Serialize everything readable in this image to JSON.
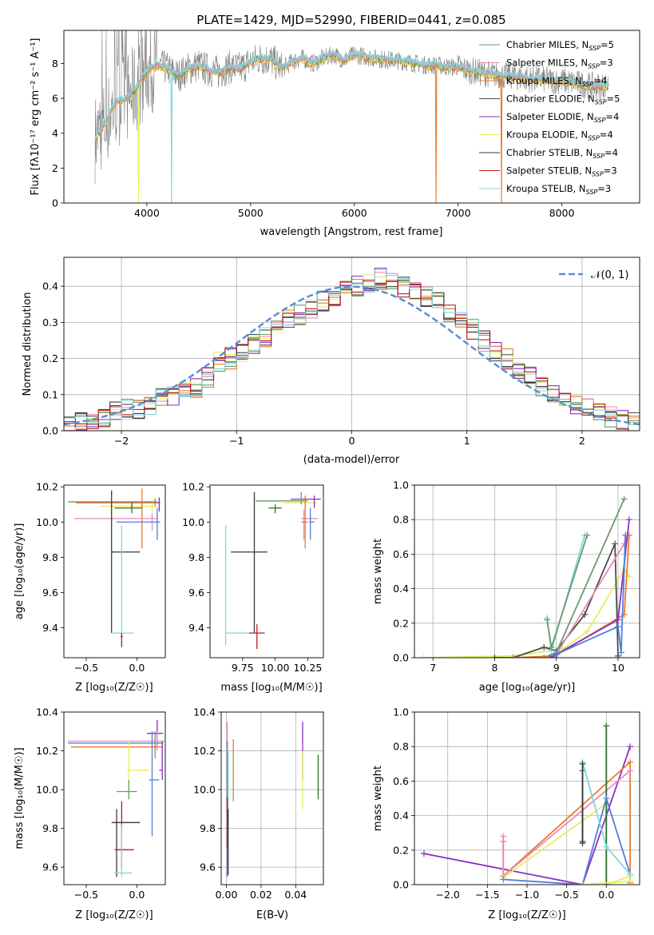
{
  "title": "PLATE=1429, MJD=52990, FIBERID=0441, z=0.085",
  "colors": {
    "chabrier_miles": "#6b9a6b",
    "salpeter_miles": "#e88ab8",
    "kroupa_miles": "#e57c2c",
    "chabrier_elodie": "#4d4d4d",
    "salpeter_elodie": "#8e2cc2",
    "kroupa_elodie": "#e5ef5a",
    "chabrier_stelib": "#3a3a3a",
    "salpeter_stelib": "#c01a1a",
    "kroupa_stelib": "#7fd8d8",
    "series_blue": "#4f7fd9",
    "series_green": "#2e6e2e",
    "gaussian": "#5a8fd6",
    "grid": "#b0b0b0",
    "spectrum_grey": "#808080"
  },
  "legend_spectrum": [
    {
      "pre": "Chabrier MILES, N",
      "sub": "SSP",
      "post": "=5",
      "color": "#6b9a6b"
    },
    {
      "pre": "Salpeter MILES, N",
      "sub": "SSP",
      "post": "=3",
      "color": "#e88ab8"
    },
    {
      "pre": "Kroupa MILES, N",
      "sub": "SSP",
      "post": "=4",
      "color": "#e57c2c"
    },
    {
      "pre": "Chabrier ELODIE, N",
      "sub": "SSP",
      "post": "=5",
      "color": "#4d4d4d"
    },
    {
      "pre": "Salpeter ELODIE, N",
      "sub": "SSP",
      "post": "=4",
      "color": "#8e2cc2"
    },
    {
      "pre": "Kroupa ELODIE, N",
      "sub": "SSP",
      "post": "=4",
      "color": "#e5ef5a"
    },
    {
      "pre": "Chabrier STELIB, N",
      "sub": "SSP",
      "post": "=4",
      "color": "#3a3a3a"
    },
    {
      "pre": "Salpeter STELIB, N",
      "sub": "SSP",
      "post": "=3",
      "color": "#c01a1a"
    },
    {
      "pre": "Kroupa STELIB, N",
      "sub": "SSP",
      "post": "=3",
      "color": "#7fd8d8"
    }
  ],
  "chart_data": [
    {
      "type": "line",
      "xlabel": "wavelength [Angstrom, rest frame]",
      "ylabel": "Flux [f_λ 10^-17 erg cm^-2 s^-1 A^-1]",
      "xlim": [
        3200,
        8750
      ],
      "ylim": [
        0,
        9.9
      ],
      "xticks": [
        "4000",
        "5000",
        "6000",
        "7000",
        "8000"
      ],
      "yticks": [
        "0",
        "2",
        "4",
        "6",
        "8"
      ],
      "continuum": [
        [
          3500,
          3.7
        ],
        [
          3600,
          4.6
        ],
        [
          3700,
          5.8
        ],
        [
          3800,
          6.0
        ],
        [
          3900,
          6.6
        ],
        [
          4000,
          7.6
        ],
        [
          4100,
          7.9
        ],
        [
          4200,
          7.7
        ],
        [
          4300,
          7.3
        ],
        [
          4400,
          7.7
        ],
        [
          4500,
          7.9
        ],
        [
          4600,
          7.6
        ],
        [
          4700,
          7.5
        ],
        [
          4800,
          7.8
        ],
        [
          4900,
          7.7
        ],
        [
          5000,
          8.1
        ],
        [
          5100,
          8.3
        ],
        [
          5200,
          8.2
        ],
        [
          5300,
          7.7
        ],
        [
          5400,
          8.1
        ],
        [
          5500,
          8.3
        ],
        [
          5600,
          8.0
        ],
        [
          5700,
          8.3
        ],
        [
          5800,
          8.5
        ],
        [
          5900,
          8.2
        ],
        [
          6000,
          8.5
        ],
        [
          6100,
          8.4
        ],
        [
          6200,
          8.3
        ],
        [
          6300,
          8.2
        ],
        [
          6400,
          8.2
        ],
        [
          6500,
          8.1
        ],
        [
          6600,
          8.0
        ],
        [
          6700,
          7.9
        ],
        [
          6800,
          7.9
        ],
        [
          6900,
          7.8
        ],
        [
          7000,
          7.8
        ],
        [
          7100,
          7.6
        ],
        [
          7200,
          7.5
        ],
        [
          7300,
          7.4
        ],
        [
          7400,
          7.3
        ],
        [
          7500,
          7.3
        ],
        [
          7600,
          7.2
        ],
        [
          7700,
          7.1
        ],
        [
          7800,
          7.1
        ],
        [
          7900,
          7.0
        ],
        [
          8000,
          7.0
        ],
        [
          8100,
          6.9
        ],
        [
          8200,
          6.8
        ],
        [
          8300,
          6.7
        ],
        [
          8400,
          6.7
        ],
        [
          8450,
          6.8
        ]
      ]
    },
    {
      "type": "line",
      "xlabel": "(data-model)/error",
      "ylabel": "Normed distribution",
      "xlim": [
        -2.5,
        2.5
      ],
      "ylim": [
        0,
        0.48
      ],
      "xticks": [
        "−2",
        "−1",
        "0",
        "1",
        "2"
      ],
      "yticks": [
        "0.0",
        "0.1",
        "0.2",
        "0.3",
        "0.4"
      ],
      "legend": "𝒩(0, 1)",
      "bin_edges_start": -2.5,
      "bin_width": 0.1,
      "hist_base": [
        0.02,
        0.025,
        0.03,
        0.04,
        0.05,
        0.06,
        0.06,
        0.07,
        0.09,
        0.1,
        0.11,
        0.12,
        0.15,
        0.19,
        0.2,
        0.22,
        0.24,
        0.26,
        0.29,
        0.31,
        0.32,
        0.34,
        0.36,
        0.37,
        0.39,
        0.4,
        0.41,
        0.42,
        0.41,
        0.4,
        0.39,
        0.37,
        0.36,
        0.33,
        0.3,
        0.28,
        0.25,
        0.22,
        0.2,
        0.17,
        0.15,
        0.12,
        0.1,
        0.09,
        0.07,
        0.06,
        0.05,
        0.04,
        0.03,
        0.02
      ]
    },
    {
      "type": "scatter",
      "xlabel": "Z [log₁₀(Z/Z☉)]",
      "ylabel": "age  [log₁₀(age/yr)]",
      "xlim": [
        -0.72,
        0.28
      ],
      "ylim": [
        9.23,
        10.21
      ],
      "xticks": [
        "−0.5",
        "0.0"
      ],
      "yticks": [
        "9.4",
        "9.6",
        "9.8",
        "10.0",
        "10.2"
      ]
    },
    {
      "type": "scatter",
      "xlabel": "mass [log₁₀(M/M☉)]",
      "ylabel": "",
      "xlim": [
        9.5,
        10.37
      ],
      "ylim": [
        9.23,
        10.21
      ],
      "xticks": [
        "9.75",
        "10.00",
        "10.25"
      ],
      "yticks": [
        "9.4",
        "9.6",
        "9.8",
        "10.0",
        "10.2"
      ]
    },
    {
      "type": "line",
      "xlabel": "age  [log₁₀(age/yr)]",
      "ylabel": "mass weight",
      "xlim": [
        6.7,
        10.35
      ],
      "ylim": [
        0,
        1.0
      ],
      "xticks": [
        "7",
        "8",
        "9",
        "10"
      ],
      "yticks": [
        "0.0",
        "0.2",
        "0.4",
        "0.6",
        "0.8",
        "1.0"
      ]
    },
    {
      "type": "scatter",
      "xlabel": "Z [log₁₀(Z/Z☉)]",
      "ylabel": "mass [log₁₀(M/M☉)]",
      "xlim": [
        -0.72,
        0.28
      ],
      "ylim": [
        9.51,
        10.4
      ],
      "xticks": [
        "−0.5",
        "0.0"
      ],
      "yticks": [
        "9.6",
        "9.8",
        "10.0",
        "10.2",
        "10.4"
      ]
    },
    {
      "type": "scatter",
      "xlabel": "E(B-V)",
      "ylabel": "",
      "xlim": [
        -0.003,
        0.056
      ],
      "ylim": [
        9.51,
        10.4
      ],
      "xticks": [
        "0.00",
        "0.02",
        "0.04"
      ],
      "yticks": [
        "9.6",
        "9.8",
        "10.0",
        "10.2",
        "10.4"
      ]
    },
    {
      "type": "line",
      "xlabel": "Z [log₁₀(Z/Z☉)]",
      "ylabel": "mass weight",
      "xlim": [
        -2.42,
        0.42
      ],
      "ylim": [
        0,
        1.0
      ],
      "xticks": [
        "−2.0",
        "−1.5",
        "−1.0",
        "−0.5",
        "0.0"
      ],
      "yticks": [
        "0.0",
        "0.2",
        "0.4",
        "0.6",
        "0.8",
        "1.0"
      ]
    }
  ]
}
